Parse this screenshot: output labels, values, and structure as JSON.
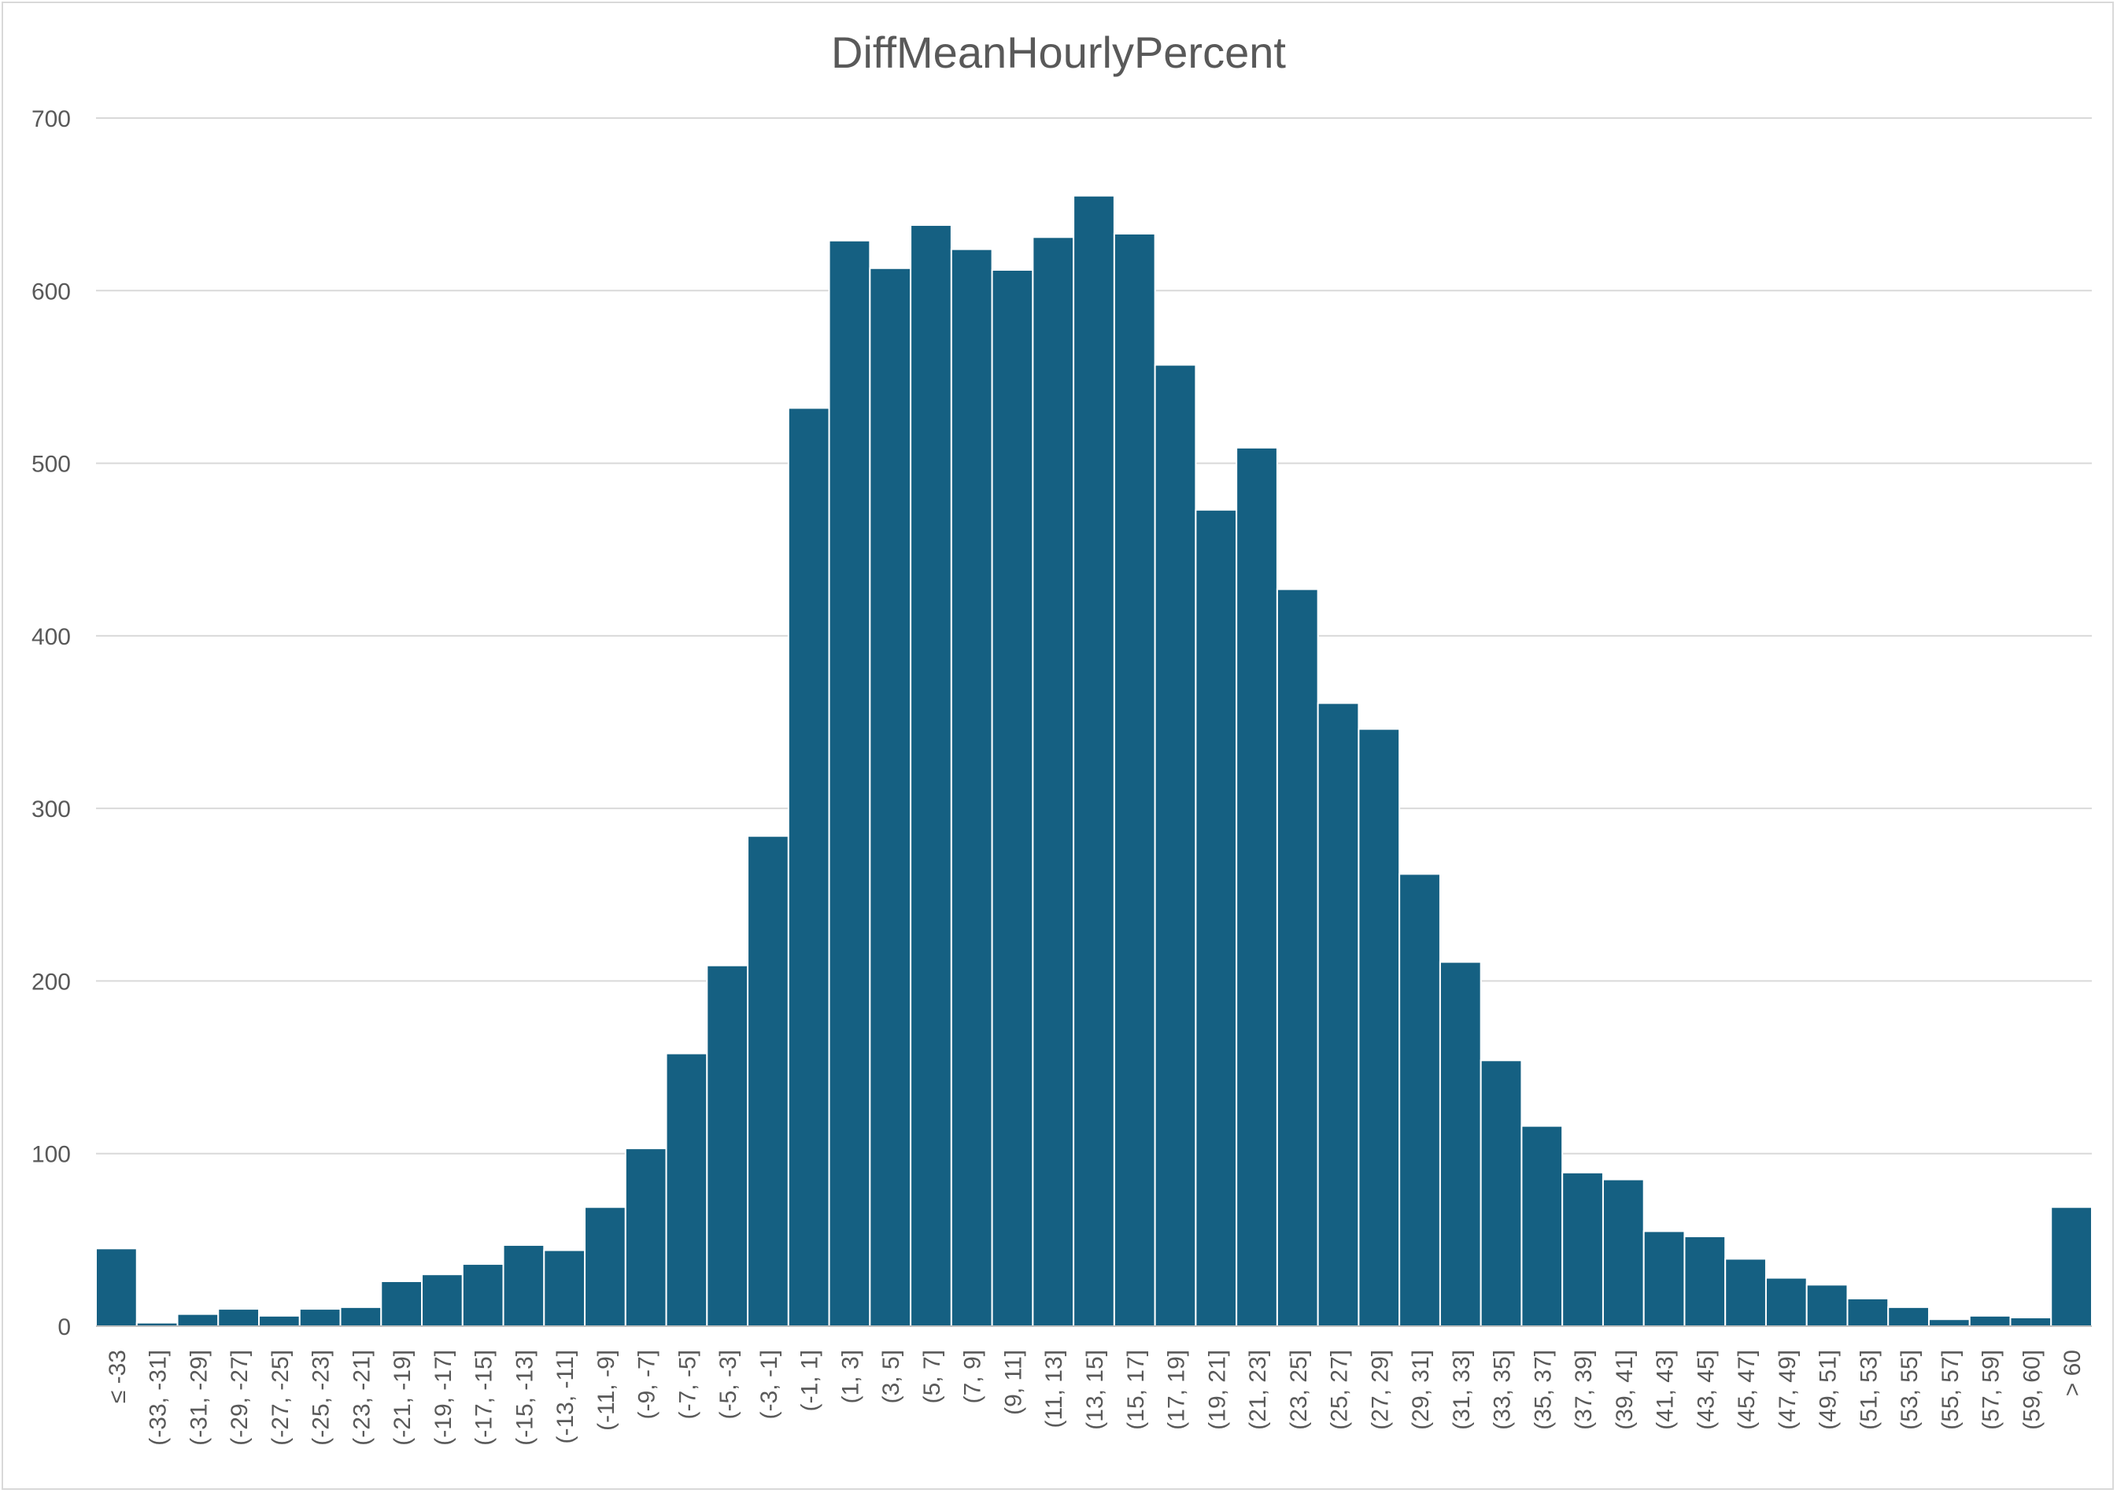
{
  "chart_data": {
    "type": "bar",
    "title": "DiffMeanHourlyPercent",
    "xlabel": "",
    "ylabel": "",
    "ylim": [
      0,
      700
    ],
    "yticks": [
      0,
      100,
      200,
      300,
      400,
      500,
      600,
      700
    ],
    "grid": true,
    "legend": "none",
    "bar_color": "#156082",
    "categories": [
      "≤ -33",
      "(-33, -31]",
      "(-31, -29]",
      "(-29, -27]",
      "(-27, -25]",
      "(-25, -23]",
      "(-23, -21]",
      "(-21, -19]",
      "(-19, -17]",
      "(-17, -15]",
      "(-15, -13]",
      "(-13, -11]",
      "(-11, -9]",
      "(-9, -7]",
      "(-7, -5]",
      "(-5, -3]",
      "(-3, -1]",
      "(-1, 1]",
      "(1, 3]",
      "(3, 5]",
      "(5, 7]",
      "(7, 9]",
      "(9, 11]",
      "(11, 13]",
      "(13, 15]",
      "(15, 17]",
      "(17, 19]",
      "(19, 21]",
      "(21, 23]",
      "(23, 25]",
      "(25, 27]",
      "(27, 29]",
      "(29, 31]",
      "(31, 33]",
      "(33, 35]",
      "(35, 37]",
      "(37, 39]",
      "(39, 41]",
      "(41, 43]",
      "(43, 45]",
      "(45, 47]",
      "(47, 49]",
      "(49, 51]",
      "(51, 53]",
      "(53, 55]",
      "(55, 57]",
      "(57, 59]",
      "(59, 60]",
      "> 60"
    ],
    "values": [
      45,
      2,
      7,
      10,
      6,
      10,
      11,
      26,
      30,
      36,
      47,
      44,
      69,
      103,
      158,
      209,
      284,
      532,
      629,
      613,
      638,
      624,
      612,
      631,
      655,
      633,
      557,
      473,
      509,
      427,
      361,
      346,
      262,
      211,
      154,
      116,
      89,
      85,
      55,
      52,
      39,
      28,
      24,
      16,
      11,
      4,
      6,
      5,
      69
    ]
  }
}
